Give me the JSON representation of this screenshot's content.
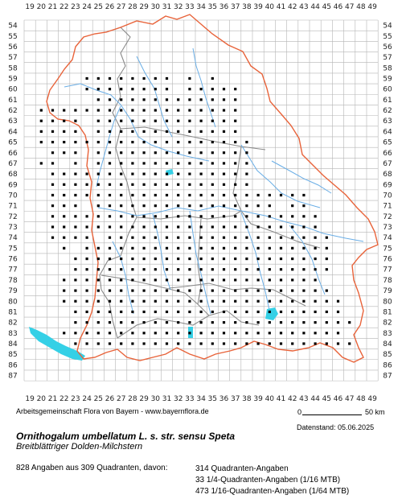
{
  "map": {
    "col_labels": [
      "19",
      "20",
      "21",
      "22",
      "23",
      "24",
      "25",
      "26",
      "27",
      "28",
      "29",
      "30",
      "31",
      "32",
      "33",
      "34",
      "35",
      "36",
      "37",
      "38",
      "39",
      "40",
      "41",
      "42",
      "43",
      "44",
      "45",
      "46",
      "47",
      "48",
      "49"
    ],
    "row_labels": [
      "54",
      "55",
      "56",
      "57",
      "58",
      "59",
      "60",
      "61",
      "62",
      "63",
      "64",
      "65",
      "66",
      "67",
      "68",
      "69",
      "70",
      "71",
      "72",
      "73",
      "74",
      "75",
      "76",
      "77",
      "78",
      "79",
      "80",
      "81",
      "82",
      "83",
      "84",
      "85",
      "86",
      "87"
    ],
    "colors": {
      "grid": "#b5b5b5",
      "rivers": "#6aaee6",
      "lakes": "#35d0e6",
      "state_border": "#e8633a",
      "district_border": "#8a8a8a",
      "records": "#000000"
    },
    "occurrences": {
      "59": [
        24,
        25,
        26,
        27,
        28,
        29,
        30,
        31,
        33,
        35
      ],
      "60": [
        24,
        25,
        26,
        27,
        28,
        29,
        30,
        31,
        33,
        34,
        35,
        36,
        37
      ],
      "61": [
        25,
        26,
        27,
        28,
        29,
        30,
        31,
        32,
        33,
        34,
        35,
        36,
        37
      ],
      "62": [
        20,
        21,
        22,
        23,
        24,
        25,
        26,
        27,
        28,
        29,
        30,
        31,
        32,
        33,
        34,
        35,
        36,
        37
      ],
      "63": [
        20,
        21,
        22,
        23,
        25,
        26,
        27,
        28,
        29,
        30,
        31,
        32,
        33,
        34,
        35,
        36,
        37
      ],
      "64": [
        20,
        21,
        22,
        23,
        25,
        26,
        27,
        28,
        29,
        30,
        31,
        32,
        33,
        34,
        35,
        36,
        37
      ],
      "65": [
        20,
        21,
        22,
        23,
        24,
        25,
        26,
        27,
        28,
        29,
        30,
        31,
        32,
        33,
        34,
        35,
        36,
        37,
        38
      ],
      "66": [
        21,
        22,
        23,
        25,
        26,
        27,
        28,
        29,
        30,
        31,
        32,
        33,
        34,
        35,
        36,
        37,
        38
      ],
      "67": [
        20,
        21,
        23,
        25,
        26,
        27,
        28,
        29,
        30,
        31,
        32,
        33,
        34,
        35,
        36,
        37,
        38
      ],
      "68": [
        21,
        22,
        23,
        24,
        25,
        26,
        27,
        28,
        29,
        30,
        31,
        32,
        33,
        34,
        35,
        36,
        37,
        38
      ],
      "69": [
        21,
        22,
        23,
        24,
        25,
        26,
        27,
        28,
        29,
        30,
        31,
        32,
        33,
        34,
        35,
        36,
        37,
        38
      ],
      "70": [
        21,
        22,
        23,
        24,
        25,
        26,
        27,
        28,
        29,
        30,
        31,
        32,
        33,
        34,
        35,
        36,
        37,
        38,
        39,
        40,
        41,
        42,
        43
      ],
      "71": [
        21,
        22,
        23,
        25,
        26,
        27,
        28,
        29,
        30,
        31,
        32,
        33,
        34,
        35,
        36,
        37,
        38,
        39,
        40,
        42,
        43
      ],
      "72": [
        21,
        22,
        23,
        24,
        25,
        26,
        27,
        28,
        29,
        30,
        31,
        32,
        33,
        34,
        35,
        36,
        37,
        38,
        39,
        40,
        41,
        42,
        43,
        44
      ],
      "73": [
        21,
        22,
        23,
        24,
        25,
        26,
        27,
        28,
        29,
        30,
        31,
        32,
        33,
        34,
        35,
        36,
        37,
        38,
        39,
        40,
        41,
        42,
        43,
        44
      ],
      "74": [
        21,
        22,
        23,
        24,
        26,
        27,
        28,
        29,
        30,
        31,
        32,
        33,
        34,
        35,
        36,
        37,
        38,
        39,
        40,
        41,
        42,
        43,
        44,
        45
      ],
      "75": [
        22,
        24,
        25,
        26,
        27,
        28,
        29,
        30,
        31,
        32,
        33,
        34,
        35,
        36,
        37,
        38,
        39,
        40,
        41,
        42,
        43,
        44,
        45
      ],
      "76": [
        23,
        24,
        25,
        26,
        27,
        28,
        29,
        30,
        31,
        32,
        33,
        34,
        35,
        36,
        37,
        38,
        39,
        40,
        41,
        42,
        43,
        44,
        45
      ],
      "77": [
        23,
        24,
        25,
        26,
        27,
        28,
        29,
        30,
        31,
        32,
        33,
        34,
        35,
        36,
        37,
        38,
        39,
        40,
        41,
        42,
        43,
        44,
        45
      ],
      "78": [
        22,
        23,
        24,
        25,
        26,
        27,
        28,
        29,
        30,
        31,
        32,
        33,
        34,
        35,
        36,
        37,
        38,
        39,
        40,
        41,
        42,
        43,
        44
      ],
      "79": [
        22,
        23,
        24,
        25,
        26,
        27,
        28,
        29,
        30,
        31,
        32,
        33,
        34,
        35,
        36,
        37,
        38,
        39,
        40,
        41,
        42,
        43,
        44,
        45
      ],
      "80": [
        22,
        23,
        24,
        25,
        26,
        27,
        28,
        29,
        30,
        31,
        32,
        33,
        34,
        35,
        36,
        37,
        38,
        39,
        40,
        41,
        42,
        43,
        44,
        45,
        46
      ],
      "81": [
        23,
        24,
        25,
        26,
        27,
        28,
        29,
        30,
        31,
        32,
        33,
        34,
        35,
        36,
        37,
        38,
        39,
        40,
        41,
        42,
        43,
        44,
        45,
        46
      ],
      "82": [
        23,
        24,
        25,
        26,
        27,
        28,
        29,
        30,
        31,
        32,
        33,
        34,
        35,
        36,
        37,
        38,
        39,
        40,
        41,
        42,
        43,
        44,
        45,
        46,
        47
      ],
      "83": [
        22,
        23,
        24,
        25,
        26,
        27,
        28,
        29,
        30,
        31,
        32,
        33,
        34,
        35,
        36,
        37,
        38,
        39,
        40,
        41,
        42,
        43,
        44,
        45,
        46
      ],
      "84": [
        23,
        24,
        25,
        26,
        27,
        28,
        29,
        30,
        31,
        32,
        33,
        34,
        35,
        36,
        37,
        38,
        39,
        40,
        41,
        42,
        43,
        44,
        45,
        46,
        47
      ]
    }
  },
  "footer": {
    "credit": "Arbeitsgemeinschaft Flora von Bayern - www.bayernflora.de",
    "scale_zero": "0",
    "scale_end": "50 km",
    "date": "Datenstand: 05.06.2025",
    "scientific_name": "Ornithogalum umbellatum L. s. str. sensu Speta",
    "common_name": "Breitblättriger Dolden-Milchstern",
    "summary": "828 Angaben aus 309 Quadranten, davon:",
    "breakdown": [
      "314 Quadranten-Angaben",
      "33 1/4-Quadranten-Angaben (1/16 MTB)",
      "473 1/16-Quadranten-Angaben (1/64 MTB)"
    ]
  }
}
